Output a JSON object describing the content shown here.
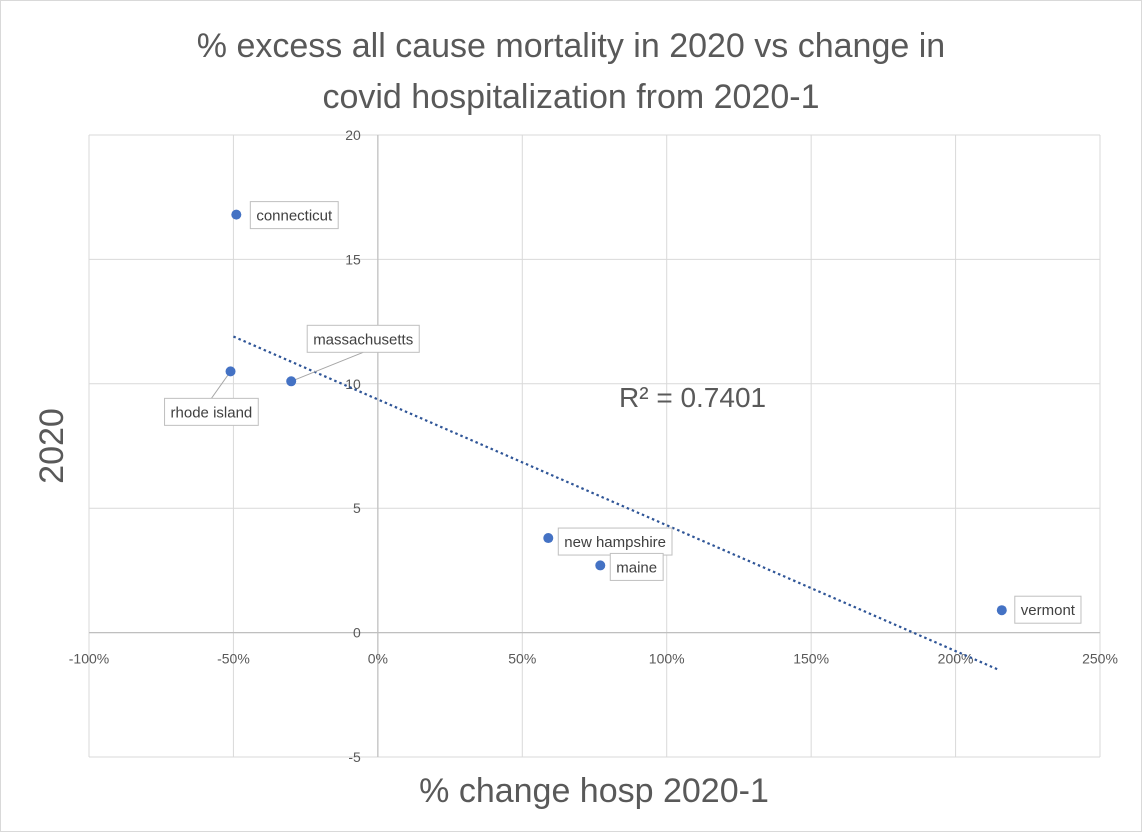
{
  "chart_data": {
    "type": "scatter",
    "title_lines": [
      "% excess all cause mortality in 2020 vs change in",
      "covid hospitalization from 2020-1"
    ],
    "xlabel": "% change hosp 2020-1",
    "ylabel": "2020",
    "xlim": [
      -100,
      250
    ],
    "ylim": [
      -5,
      20
    ],
    "x_ticks": [
      -100,
      -50,
      0,
      50,
      100,
      150,
      200,
      250
    ],
    "x_tick_labels": [
      "-100%",
      "-50%",
      "0%",
      "50%",
      "100%",
      "150%",
      "200%",
      "250%"
    ],
    "y_ticks": [
      -5,
      0,
      5,
      10,
      15,
      20
    ],
    "y_tick_labels": [
      "-5",
      "0",
      "5",
      "10",
      "15",
      "20"
    ],
    "grid": true,
    "marker_color": "#4472C4",
    "trendline_color": "#2F5597",
    "points": [
      {
        "label": "connecticut",
        "x": -49,
        "y": 16.8
      },
      {
        "label": "rhode island",
        "x": -51,
        "y": 10.5
      },
      {
        "label": "massachusetts",
        "x": -30,
        "y": 10.1
      },
      {
        "label": "new hampshire",
        "x": 59,
        "y": 3.8
      },
      {
        "label": "maine",
        "x": 77,
        "y": 2.7
      },
      {
        "label": "vermont",
        "x": 216,
        "y": 0.9
      }
    ],
    "trendline": {
      "type": "linear",
      "from": {
        "x": -50,
        "y": 11.9
      },
      "to": {
        "x": 215,
        "y": -1.5
      },
      "r_squared_label": "R² = 0.7401"
    }
  }
}
